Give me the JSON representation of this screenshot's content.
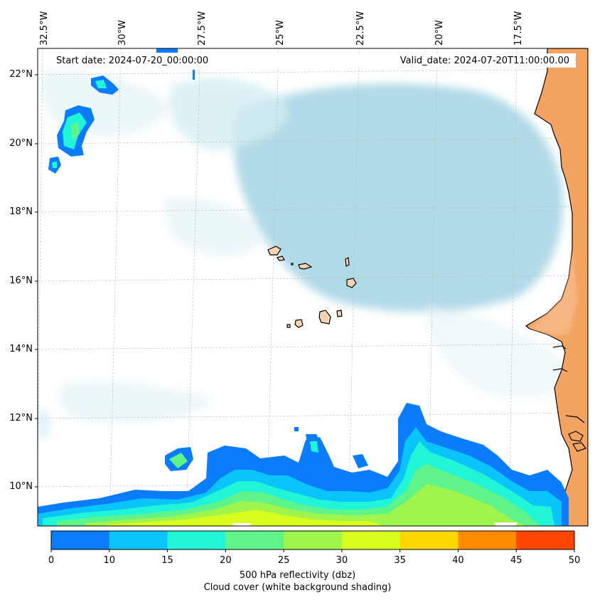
{
  "header": {
    "start_date": "Start date: 2024-07-20_00:00:00",
    "valid_date": "Valid_date: 2024-07-20T11:00:00.00"
  },
  "axes": {
    "longitude_labels": [
      "32.5°W",
      "30°W",
      "27.5°W",
      "25°W",
      "22.5°W",
      "20°W",
      "17.5°W"
    ],
    "latitude_labels": [
      "22°N",
      "20°N",
      "18°N",
      "16°N",
      "14°N",
      "12°N",
      "10°N"
    ]
  },
  "colorbar": {
    "ticks": [
      "0",
      "10",
      "15",
      "20",
      "25",
      "30",
      "35",
      "40",
      "45",
      "50"
    ],
    "colors": [
      "#0b7dfc",
      "#0ac4fa",
      "#20f5d8",
      "#5ff48a",
      "#a0f54c",
      "#d8ff1e",
      "#ffd700",
      "#ff8c00",
      "#ff4500"
    ],
    "label_line1": "500 hPa reflectivity (dbz)",
    "label_line2": "Cloud cover (white background shading)"
  },
  "map": {
    "land_color": "#f4a460",
    "cloud_color": "#add8e6",
    "grid": true
  }
}
